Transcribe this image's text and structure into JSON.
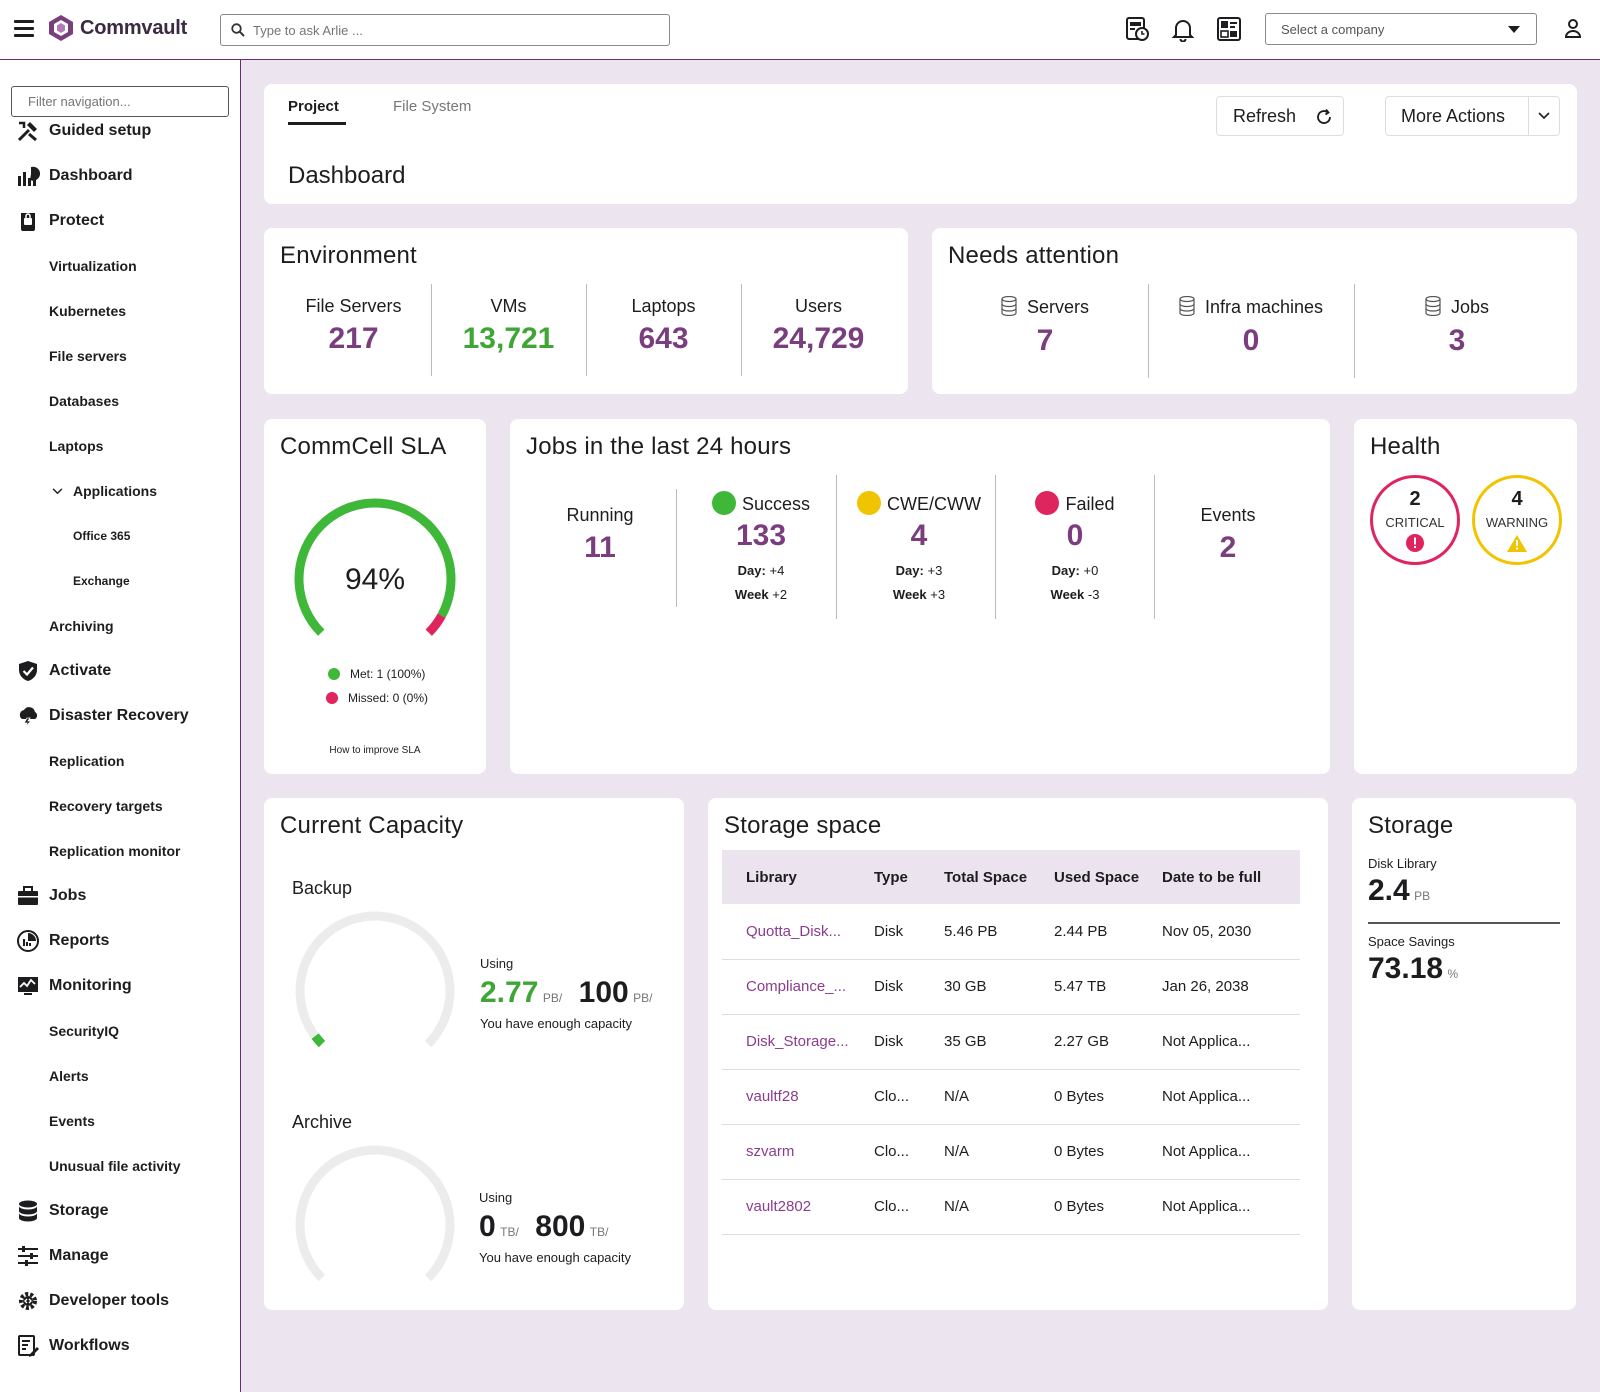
{
  "topbar": {
    "brand": "Commvault",
    "search_placeholder": "Type to ask Arlie ...",
    "company_select": "Select a company",
    "icons": [
      "reports-schedule-icon",
      "bell-icon",
      "dashboard-icon",
      "user-icon"
    ]
  },
  "sidebar": {
    "filter_placeholder": "Filter navigation...",
    "items": [
      {
        "label": "Guided setup",
        "icon": "tools-icon",
        "level": 0
      },
      {
        "label": "Dashboard",
        "icon": "chart-icon",
        "level": 0
      },
      {
        "label": "Protect",
        "icon": "lock-icon",
        "level": 0
      },
      {
        "label": "Virtualization",
        "level": 1
      },
      {
        "label": "Kubernetes",
        "level": 1
      },
      {
        "label": "File servers",
        "level": 1
      },
      {
        "label": "Databases",
        "level": 1
      },
      {
        "label": "Laptops",
        "level": 1
      },
      {
        "label": "Applications",
        "level": 1,
        "expanded": true
      },
      {
        "label": "Office 365",
        "level": 2
      },
      {
        "label": "Exchange",
        "level": 2
      },
      {
        "label": "Archiving",
        "level": 1
      },
      {
        "label": "Activate",
        "icon": "shield-check-icon",
        "level": 0
      },
      {
        "label": "Disaster Recovery",
        "icon": "cloud-storm-icon",
        "level": 0
      },
      {
        "label": "Replication",
        "level": 1
      },
      {
        "label": "Recovery targets",
        "level": 1
      },
      {
        "label": "Replication monitor",
        "level": 1
      },
      {
        "label": "Jobs",
        "icon": "briefcase-icon",
        "level": 0
      },
      {
        "label": "Reports",
        "icon": "pie-chart-icon",
        "level": 0
      },
      {
        "label": "Monitoring",
        "icon": "monitor-icon",
        "level": 0
      },
      {
        "label": "SecurityIQ",
        "level": 1
      },
      {
        "label": "Alerts",
        "level": 1
      },
      {
        "label": "Events",
        "level": 1
      },
      {
        "label": "Unusual file activity",
        "level": 1
      },
      {
        "label": "Storage",
        "icon": "database-icon",
        "level": 0
      },
      {
        "label": "Manage",
        "icon": "sliders-icon",
        "level": 0
      },
      {
        "label": "Developer tools",
        "icon": "gear-code-icon",
        "level": 0
      },
      {
        "label": "Workflows",
        "icon": "workflow-icon",
        "level": 0
      }
    ]
  },
  "header": {
    "tabs": [
      "Project",
      "File System"
    ],
    "active_tab": "Project",
    "title": "Dashboard",
    "refresh": "Refresh",
    "more_actions": "More Actions"
  },
  "environment": {
    "title": "Environment",
    "stats": [
      {
        "label": "File Servers",
        "value": "217"
      },
      {
        "label": "VMs",
        "value": "13,721"
      },
      {
        "label": "Laptops",
        "value": "643"
      },
      {
        "label": "Users",
        "value": "24,729"
      }
    ]
  },
  "needs_attention": {
    "title": "Needs attention",
    "stats": [
      {
        "label": "Servers",
        "value": "7"
      },
      {
        "label": "Infra machines",
        "value": "0"
      },
      {
        "label": "Jobs",
        "value": "3"
      }
    ]
  },
  "sla": {
    "title": "CommCell SLA",
    "percent": "94%",
    "percent_value": 94,
    "met": "Met: 1 (100%)",
    "missed": "Missed: 0 (0%)",
    "link": "How to improve SLA",
    "colors": {
      "met": "#3fb83a",
      "missed": "#e0245e"
    }
  },
  "jobs24": {
    "title": "Jobs in the last 24 hours",
    "running": {
      "label": "Running",
      "value": "11"
    },
    "success": {
      "label": "Success",
      "value": "133",
      "day_label": "Day:",
      "day": "+4",
      "week_label": "Week",
      "week": "+2",
      "color": "#3fb83a"
    },
    "cwe": {
      "label": "CWE/CWW",
      "value": "4",
      "day_label": "Day:",
      "day": "+3",
      "week_label": "Week",
      "week": "+3",
      "color": "#f0c400"
    },
    "failed": {
      "label": "Failed",
      "value": "0",
      "day_label": "Day:",
      "day": "+0",
      "week_label": "Week",
      "week": "-3",
      "color": "#e0245e"
    },
    "events": {
      "label": "Events",
      "value": "2"
    }
  },
  "health": {
    "title": "Health",
    "critical": {
      "count": "2",
      "label": "CRITICAL",
      "color": "#e0245e"
    },
    "warning": {
      "count": "4",
      "label": "WARNING",
      "color": "#f0c400"
    }
  },
  "capacity": {
    "title": "Current Capacity",
    "backup": {
      "title": "Backup",
      "using": "Using",
      "used": "2.77",
      "used_unit": "PB/",
      "total": "100",
      "total_unit": "PB/",
      "note": "You have enough capacity",
      "fraction": 0.0277
    },
    "archive": {
      "title": "Archive",
      "using": "Using",
      "used": "0",
      "used_unit": "TB/",
      "total": "800",
      "total_unit": "TB/",
      "note": "You have enough capacity",
      "fraction": 0
    }
  },
  "storage_space": {
    "title": "Storage space",
    "columns": [
      "Library",
      "Type",
      "Total Space",
      "Used Space",
      "Date to be full"
    ],
    "rows": [
      [
        "Quotta_Disk...",
        "Disk",
        "5.46 PB",
        "2.44 PB",
        "Nov 05, 2030"
      ],
      [
        "Compliance_...",
        "Disk",
        "30 GB",
        "5.47 TB",
        "Jan 26, 2038"
      ],
      [
        "Disk_Storage...",
        "Disk",
        "35 GB",
        "2.27 GB",
        "Not Applica..."
      ],
      [
        "vaultf28",
        "Clo...",
        "N/A",
        "0 Bytes",
        "Not Applica..."
      ],
      [
        "szvarm",
        "Clo...",
        "N/A",
        "0 Bytes",
        "Not Applica..."
      ],
      [
        "vault2802",
        "Clo...",
        "N/A",
        "0 Bytes",
        "Not Applica..."
      ]
    ]
  },
  "storage": {
    "title": "Storage",
    "disk_label": "Disk Library",
    "disk_value": "2.4",
    "disk_unit": "PB",
    "savings_label": "Space Savings",
    "savings_value": "73.18",
    "savings_unit": "%"
  }
}
